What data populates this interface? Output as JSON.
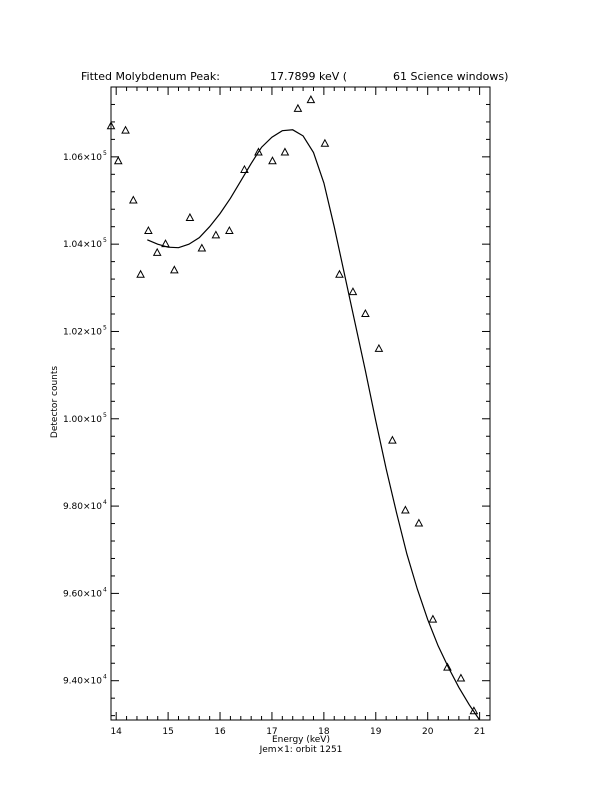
{
  "title": {
    "left": "Fitted Molybdenum Peak:",
    "value": "17.7899 keV (",
    "windows": "61 Science windows)"
  },
  "footer": "Jem×1: orbit 1251",
  "chart_data": {
    "type": "scatter",
    "xlabel": "Energy (keV)",
    "ylabel": "Detector counts",
    "xlim": [
      13.9,
      21.2
    ],
    "ylim": [
      93100,
      107600
    ],
    "x_ticks": [
      14,
      15,
      16,
      17,
      18,
      19,
      20,
      21
    ],
    "x_tick_labels": [
      "14",
      "15",
      "16",
      "17",
      "18",
      "19",
      "20",
      "21"
    ],
    "y_ticks": [
      94000,
      96000,
      98000,
      100000,
      102000,
      104000,
      106000
    ],
    "y_tick_labels": [
      {
        "mantissa": "9.40×10",
        "exp": "4"
      },
      {
        "mantissa": "9.60×10",
        "exp": "4"
      },
      {
        "mantissa": "9.80×10",
        "exp": "4"
      },
      {
        "mantissa": "1.00×10",
        "exp": "5"
      },
      {
        "mantissa": "1.02×10",
        "exp": "5"
      },
      {
        "mantissa": "1.04×10",
        "exp": "5"
      },
      {
        "mantissa": "1.06×10",
        "exp": "5"
      }
    ],
    "grid": false,
    "series": [
      {
        "marker": "triangle",
        "x": [
          13.9,
          14.04,
          14.18,
          14.33,
          14.47,
          14.62,
          14.79,
          14.95,
          15.12,
          15.42,
          15.65,
          15.92,
          16.18,
          16.47,
          16.74,
          17.01,
          17.25,
          17.5,
          17.75,
          18.02,
          18.3,
          18.56,
          18.8,
          19.06,
          19.32,
          19.57,
          19.83,
          20.1,
          20.38,
          20.64,
          20.89
        ],
        "y": [
          106700,
          105900,
          106600,
          105000,
          103300,
          104300,
          103800,
          104000,
          103400,
          104600,
          103900,
          104200,
          104300,
          105700,
          106100,
          105900,
          106100,
          107100,
          107300,
          106300,
          103300,
          102900,
          102400,
          101600,
          99500,
          97900,
          97600,
          95400,
          94300,
          94050,
          93300
        ]
      },
      {
        "marker": "line",
        "x": [
          14.6,
          14.8,
          15.0,
          15.2,
          15.4,
          15.6,
          15.8,
          16.0,
          16.2,
          16.4,
          16.6,
          16.8,
          17.0,
          17.2,
          17.4,
          17.6,
          17.8,
          18.0,
          18.2,
          18.4,
          18.6,
          18.8,
          19.0,
          19.2,
          19.4,
          19.6,
          19.8,
          20.0,
          20.2,
          20.4,
          20.6,
          20.8,
          21.0
        ],
        "y": [
          104100,
          104000,
          103930,
          103920,
          104000,
          104150,
          104400,
          104700,
          105050,
          105450,
          105850,
          106220,
          106450,
          106600,
          106620,
          106480,
          106100,
          105400,
          104400,
          103300,
          102200,
          101100,
          99950,
          98850,
          97850,
          96900,
          96100,
          95400,
          94800,
          94300,
          93850,
          93450,
          93100
        ]
      }
    ]
  }
}
